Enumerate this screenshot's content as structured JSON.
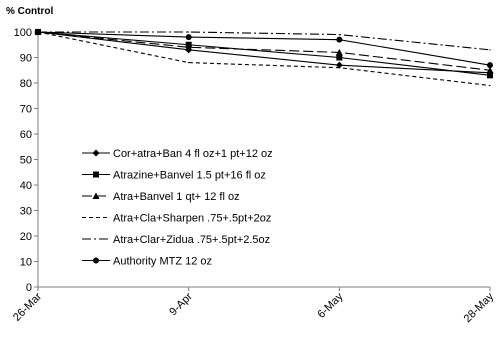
{
  "chart_data": {
    "type": "line",
    "ylabel": "% Control",
    "xlabel": "",
    "title": "",
    "ylim": [
      0,
      100
    ],
    "yticks": [
      0,
      10,
      20,
      30,
      40,
      50,
      60,
      70,
      80,
      90,
      100
    ],
    "categories": [
      "26-Mar",
      "9-Apr",
      "6-May",
      "28-May"
    ],
    "grid": false,
    "legend_position": "center-left",
    "series": [
      {
        "name": "Cor+atra+Ban 4 fl oz+1 pt+12 oz",
        "values": [
          100,
          93,
          87,
          84
        ],
        "dash": "",
        "marker": "diamond"
      },
      {
        "name": "Atrazine+Banvel 1.5 pt+16 fl oz",
        "values": [
          100,
          95,
          90,
          83
        ],
        "dash": "",
        "marker": "square"
      },
      {
        "name": "Atra+Banvel 1 qt+ 12 fl oz",
        "values": [
          100,
          94,
          92,
          85
        ],
        "dash": "10,4",
        "marker": "triangle"
      },
      {
        "name": "Atra+Cla+Sharpen .75+.5pt+2oz",
        "values": [
          100,
          88,
          86,
          79
        ],
        "dash": "4,3",
        "marker": "none"
      },
      {
        "name": "Atra+Clar+Zidua .75+.5pt+2.5oz",
        "values": [
          100,
          100,
          99,
          93
        ],
        "dash": "9,3,2,3",
        "marker": "none"
      },
      {
        "name": "Authority MTZ 12 oz",
        "values": [
          100,
          98,
          97,
          87
        ],
        "dash": "",
        "marker": "circle"
      }
    ]
  }
}
